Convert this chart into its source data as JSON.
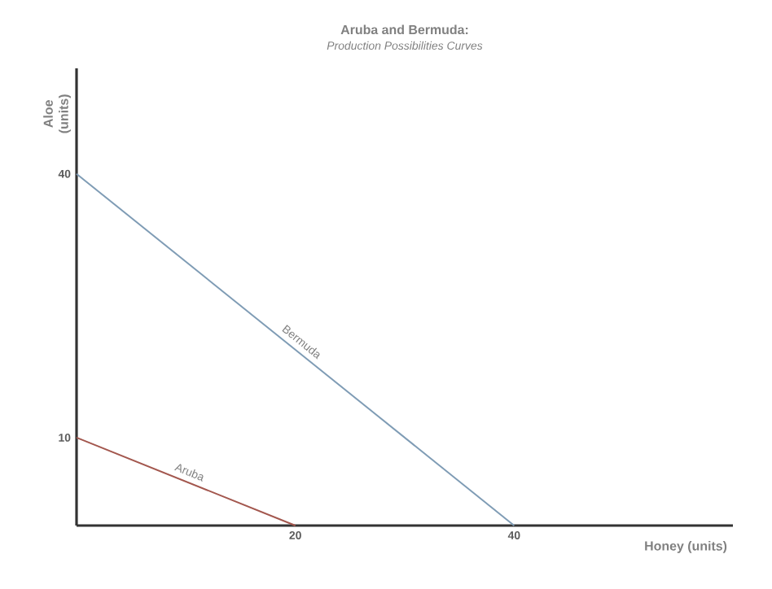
{
  "chart_data": {
    "type": "line",
    "title": "Aruba and Bermuda:",
    "subtitle": "Production Possibilities Curves",
    "xlabel": "Honey (units)",
    "ylabel": "Aloe (units)",
    "series": [
      {
        "name": "Bermuda",
        "color": "#7f9cb5",
        "x": [
          0,
          40
        ],
        "values": [
          40,
          0
        ]
      },
      {
        "name": "Aruba",
        "color": "#a3574e",
        "x": [
          0,
          20
        ],
        "values": [
          10,
          0
        ]
      }
    ],
    "xlim": [
      0,
      60
    ],
    "ylim": [
      0,
      52
    ],
    "xticks": [
      20,
      40
    ],
    "yticks": [
      10,
      40
    ]
  }
}
